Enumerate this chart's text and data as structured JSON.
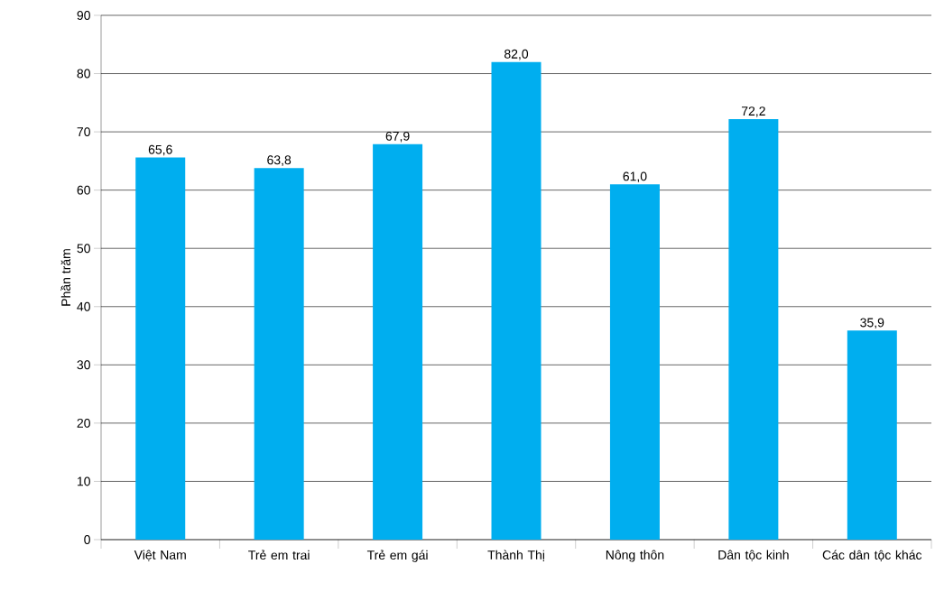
{
  "chart_data": {
    "type": "bar",
    "ylabel": "Phần trăm",
    "categories": [
      "Việt Nam",
      "Trẻ em trai",
      "Trẻ em gái",
      "Thành Thị",
      "Nông thôn",
      "Dân tộc kinh",
      "Các dân tộc khác"
    ],
    "values": [
      65.6,
      63.8,
      67.9,
      82.0,
      61.0,
      72.2,
      35.9
    ],
    "value_labels": [
      "65,6",
      "63,8",
      "67,9",
      "82,0",
      "61,0",
      "72,2",
      "35,9"
    ],
    "color": "#00aeef",
    "ylim": [
      0,
      90
    ],
    "yticks": [
      0,
      10,
      20,
      30,
      40,
      50,
      60,
      70,
      80,
      90
    ],
    "grid": "y"
  }
}
